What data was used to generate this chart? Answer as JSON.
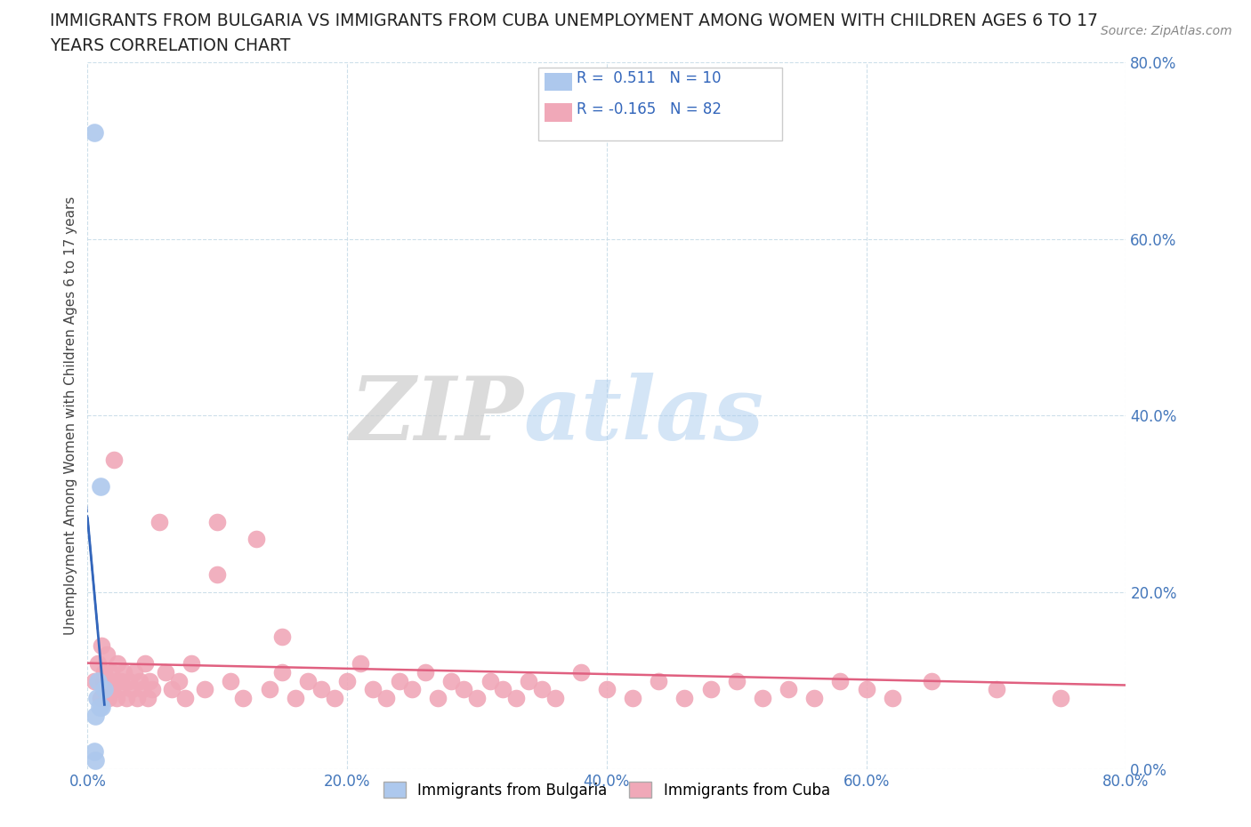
{
  "title_line1": "IMMIGRANTS FROM BULGARIA VS IMMIGRANTS FROM CUBA UNEMPLOYMENT AMONG WOMEN WITH CHILDREN AGES 6 TO 17",
  "title_line2": "YEARS CORRELATION CHART",
  "source_text": "Source: ZipAtlas.com",
  "ylabel": "Unemployment Among Women with Children Ages 6 to 17 years",
  "xlabel_bulgaria": "Immigrants from Bulgaria",
  "xlabel_cuba": "Immigrants from Cuba",
  "r_bulgaria": 0.511,
  "n_bulgaria": 10,
  "r_cuba": -0.165,
  "n_cuba": 82,
  "bulgaria_color": "#adc8ed",
  "cuba_color": "#f0a8b8",
  "bulgaria_trend_color": "#3366bb",
  "cuba_trend_color": "#e06080",
  "watermark_zip": "ZIP",
  "watermark_atlas": "atlas",
  "xlim": [
    0,
    0.8
  ],
  "ylim": [
    0,
    0.8
  ],
  "xticks": [
    0.0,
    0.2,
    0.4,
    0.6,
    0.8
  ],
  "yticks": [
    0.0,
    0.2,
    0.4,
    0.6,
    0.8
  ],
  "bg_x": [
    0.005,
    0.005,
    0.006,
    0.007,
    0.008,
    0.009,
    0.01,
    0.011,
    0.013,
    0.006
  ],
  "bg_y": [
    0.72,
    0.02,
    0.06,
    0.08,
    0.1,
    0.07,
    0.32,
    0.07,
    0.09,
    0.01
  ],
  "cu_x": [
    0.005,
    0.008,
    0.01,
    0.011,
    0.012,
    0.013,
    0.014,
    0.015,
    0.016,
    0.017,
    0.018,
    0.019,
    0.02,
    0.021,
    0.022,
    0.023,
    0.025,
    0.026,
    0.028,
    0.03,
    0.032,
    0.034,
    0.036,
    0.038,
    0.04,
    0.042,
    0.044,
    0.046,
    0.048,
    0.05,
    0.055,
    0.06,
    0.065,
    0.07,
    0.075,
    0.08,
    0.09,
    0.1,
    0.11,
    0.12,
    0.13,
    0.14,
    0.15,
    0.16,
    0.17,
    0.18,
    0.19,
    0.2,
    0.21,
    0.22,
    0.23,
    0.24,
    0.25,
    0.26,
    0.27,
    0.28,
    0.29,
    0.3,
    0.31,
    0.32,
    0.33,
    0.34,
    0.35,
    0.36,
    0.38,
    0.4,
    0.42,
    0.44,
    0.46,
    0.48,
    0.5,
    0.52,
    0.54,
    0.56,
    0.58,
    0.6,
    0.62,
    0.65,
    0.7,
    0.75,
    0.1,
    0.15
  ],
  "cu_y": [
    0.1,
    0.12,
    0.08,
    0.14,
    0.1,
    0.11,
    0.09,
    0.13,
    0.08,
    0.1,
    0.11,
    0.09,
    0.35,
    0.1,
    0.08,
    0.12,
    0.09,
    0.1,
    0.11,
    0.08,
    0.1,
    0.09,
    0.11,
    0.08,
    0.1,
    0.09,
    0.12,
    0.08,
    0.1,
    0.09,
    0.28,
    0.11,
    0.09,
    0.1,
    0.08,
    0.12,
    0.09,
    0.28,
    0.1,
    0.08,
    0.26,
    0.09,
    0.11,
    0.08,
    0.1,
    0.09,
    0.08,
    0.1,
    0.12,
    0.09,
    0.08,
    0.1,
    0.09,
    0.11,
    0.08,
    0.1,
    0.09,
    0.08,
    0.1,
    0.09,
    0.08,
    0.1,
    0.09,
    0.08,
    0.11,
    0.09,
    0.08,
    0.1,
    0.08,
    0.09,
    0.1,
    0.08,
    0.09,
    0.08,
    0.1,
    0.09,
    0.08,
    0.1,
    0.09,
    0.08,
    0.22,
    0.15
  ]
}
